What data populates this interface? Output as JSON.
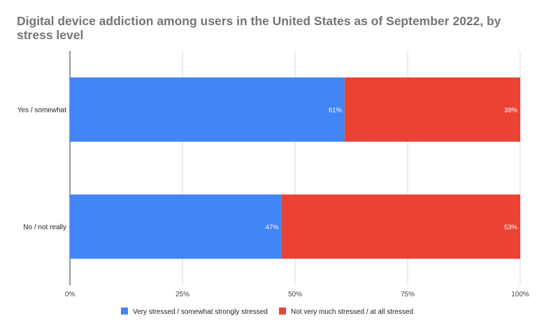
{
  "chart_data": {
    "type": "bar",
    "orientation": "horizontal",
    "stacked": "percent",
    "title": "Digital device addiction among users in the United States as of September 2022, by stress level",
    "categories": [
      "Yes / somewhat",
      "No / not really"
    ],
    "series": [
      {
        "name": "Very stressed / somewhat strongly stressed",
        "values": [
          61,
          47
        ],
        "color": "#4285f4"
      },
      {
        "name": "Not very much stressed / at all stressed",
        "values": [
          39,
          53
        ],
        "color": "#ea4335"
      }
    ],
    "data_labels": [
      [
        "61%",
        "47%"
      ],
      [
        "39%",
        "53%"
      ]
    ],
    "xlim": [
      0,
      100
    ],
    "xticks": [
      "0%",
      "25%",
      "50%",
      "75%",
      "100%"
    ],
    "grid": true,
    "legend": "bottom"
  }
}
